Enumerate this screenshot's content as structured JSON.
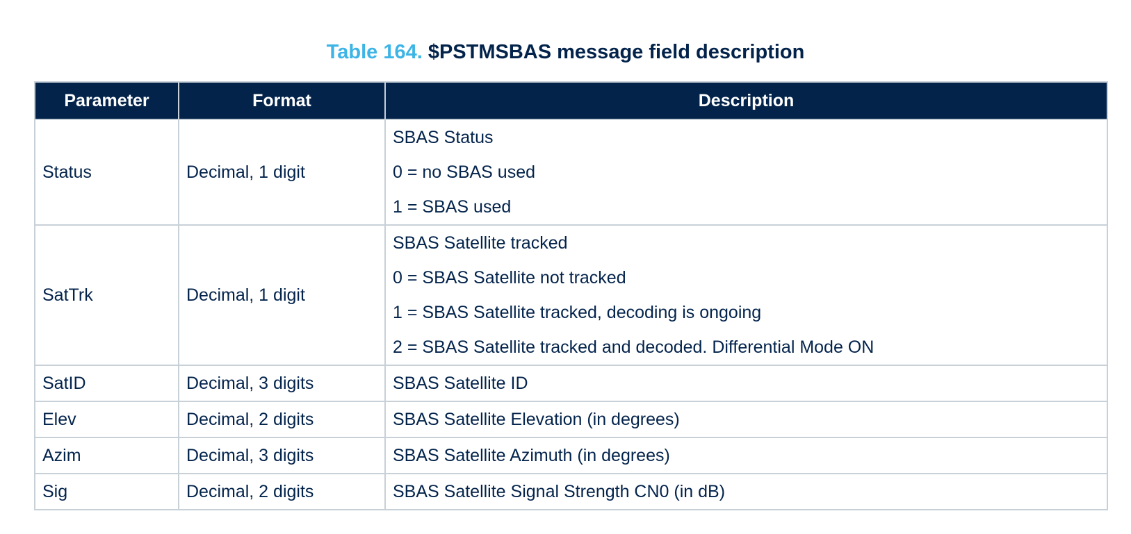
{
  "caption": {
    "number": "Table 164.",
    "title": "$PSTMSBAS message field description"
  },
  "table": {
    "headers": [
      "Parameter",
      "Format",
      "Description"
    ],
    "rows": [
      {
        "parameter": "Status",
        "format": "Decimal, 1 digit",
        "description": [
          "SBAS Status",
          "0 = no SBAS used",
          "1 = SBAS used"
        ]
      },
      {
        "parameter": "SatTrk",
        "format": "Decimal, 1 digit",
        "description": [
          "SBAS Satellite tracked",
          "0 = SBAS Satellite not tracked",
          "1 = SBAS Satellite tracked, decoding is ongoing",
          "2 = SBAS Satellite tracked and decoded. Differential Mode ON"
        ]
      },
      {
        "parameter": "SatID",
        "format": "Decimal, 3 digits",
        "description": [
          "SBAS Satellite ID"
        ]
      },
      {
        "parameter": "Elev",
        "format": "Decimal, 2 digits",
        "description": [
          "SBAS Satellite Elevation (in degrees)"
        ]
      },
      {
        "parameter": "Azim",
        "format": "Decimal, 3 digits",
        "description": [
          "SBAS Satellite Azimuth (in degrees)"
        ]
      },
      {
        "parameter": "Sig",
        "format": "Decimal, 2 digits",
        "description": [
          "SBAS Satellite Signal Strength CN0 (in dB)"
        ]
      }
    ]
  },
  "colors": {
    "header_bg": "#03234b",
    "caption_number": "#3cb4e6",
    "text": "#03234b",
    "border": "#c8d0d8"
  }
}
